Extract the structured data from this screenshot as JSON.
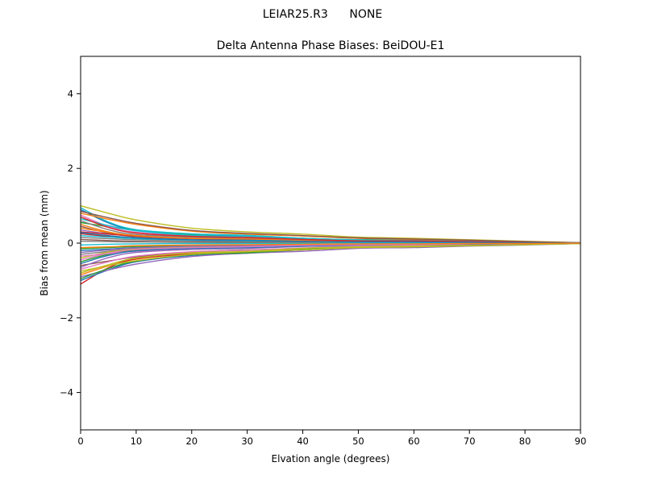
{
  "figure": {
    "background": "#ffffff",
    "suptitle": "LEIAR25.R3      NONE"
  },
  "chart_data": {
    "type": "line",
    "title": "Delta Antenna Phase Biases: BeiDOU-E1",
    "xlabel": "Elvation angle (degrees)",
    "ylabel": "Bias from mean (mm)",
    "xlim": [
      0,
      90
    ],
    "ylim": [
      -5,
      5
    ],
    "xticks": [
      0,
      10,
      20,
      30,
      40,
      50,
      60,
      70,
      80,
      90
    ],
    "yticks": [
      -4,
      -2,
      0,
      2,
      4
    ],
    "grid": false,
    "legend": "none",
    "axis_color": "#000000",
    "x": [
      0,
      5,
      10,
      20,
      30,
      40,
      50,
      60,
      70,
      80,
      90
    ],
    "series": [
      {
        "color": "#1f77b4",
        "values": [
          0.9,
          0.54,
          0.34,
          0.23,
          0.2,
          0.13,
          0.08,
          0.07,
          0.05,
          0.03,
          0.0
        ]
      },
      {
        "color": "#ff7f0e",
        "values": [
          -0.85,
          -0.61,
          -0.43,
          -0.28,
          -0.23,
          -0.15,
          -0.1,
          -0.09,
          -0.06,
          -0.03,
          -0.01
        ]
      },
      {
        "color": "#2ca02c",
        "values": [
          0.55,
          0.44,
          0.34,
          0.22,
          0.17,
          0.13,
          0.09,
          0.12,
          0.06,
          0.03,
          0.01
        ]
      },
      {
        "color": "#d62728",
        "values": [
          -1.1,
          -0.66,
          -0.42,
          -0.29,
          -0.24,
          -0.15,
          -0.1,
          -0.09,
          -0.06,
          -0.03,
          0.0
        ]
      },
      {
        "color": "#9467bd",
        "values": [
          0.35,
          0.25,
          0.18,
          0.12,
          0.09,
          0.06,
          0.04,
          0.04,
          0.02,
          0.01,
          0.0
        ]
      },
      {
        "color": "#8c564b",
        "values": [
          -0.6,
          -0.48,
          -0.37,
          -0.24,
          -0.18,
          -0.14,
          -0.1,
          -0.08,
          -0.05,
          -0.03,
          -0.01
        ]
      },
      {
        "color": "#e377c2",
        "values": [
          0.75,
          0.45,
          0.29,
          0.2,
          0.17,
          0.11,
          0.07,
          0.06,
          0.04,
          0.02,
          0.0
        ]
      },
      {
        "color": "#7f7f7f",
        "values": [
          -0.3,
          -0.22,
          -0.15,
          -0.1,
          -0.08,
          -0.05,
          -0.04,
          -0.03,
          -0.02,
          -0.01,
          0.0
        ]
      },
      {
        "color": "#bcbd22",
        "values": [
          1.0,
          0.8,
          0.62,
          0.4,
          0.3,
          0.24,
          0.16,
          0.13,
          0.09,
          0.05,
          0.01
        ]
      },
      {
        "color": "#17becf",
        "values": [
          0.95,
          0.57,
          0.36,
          0.25,
          0.21,
          0.13,
          0.09,
          0.08,
          0.05,
          0.03,
          0.0
        ]
      },
      {
        "color": "#1f77b4",
        "values": [
          -1.0,
          -0.72,
          -0.5,
          -0.33,
          -0.27,
          -0.18,
          -0.12,
          -0.1,
          -0.07,
          -0.04,
          -0.01
        ]
      },
      {
        "color": "#ff7f0e",
        "values": [
          0.8,
          0.64,
          0.5,
          0.32,
          0.24,
          0.19,
          0.13,
          0.1,
          0.07,
          0.04,
          0.01
        ]
      },
      {
        "color": "#2ca02c",
        "values": [
          -0.5,
          -0.3,
          -0.19,
          -0.13,
          -0.11,
          -0.07,
          -0.05,
          -0.04,
          -0.03,
          -0.02,
          0.0
        ]
      },
      {
        "color": "#d62728",
        "values": [
          0.25,
          0.18,
          0.13,
          0.08,
          0.07,
          0.05,
          0.03,
          0.03,
          0.02,
          0.01,
          0.0
        ]
      },
      {
        "color": "#9467bd",
        "values": [
          -0.9,
          -0.72,
          -0.56,
          -0.36,
          -0.27,
          -0.22,
          -0.14,
          -0.12,
          -0.08,
          -0.05,
          -0.01
        ]
      },
      {
        "color": "#8c564b",
        "values": [
          0.45,
          0.27,
          0.17,
          0.12,
          0.1,
          0.06,
          0.04,
          0.04,
          0.02,
          0.01,
          0.0
        ]
      },
      {
        "color": "#e377c2",
        "values": [
          -0.7,
          -0.5,
          -0.35,
          -0.23,
          -0.19,
          -0.13,
          -0.08,
          -0.07,
          -0.05,
          -0.03,
          -0.01
        ]
      },
      {
        "color": "#7f7f7f",
        "values": [
          0.15,
          0.12,
          0.09,
          0.06,
          0.05,
          0.04,
          0.02,
          0.02,
          0.01,
          0.01,
          0.0
        ]
      },
      {
        "color": "#bcbd22",
        "values": [
          -0.4,
          -0.24,
          -0.15,
          -0.1,
          -0.09,
          -0.06,
          -0.04,
          -0.03,
          -0.02,
          -0.01,
          0.0
        ]
      },
      {
        "color": "#17becf",
        "values": [
          0.65,
          0.47,
          0.33,
          0.21,
          0.18,
          0.12,
          0.08,
          0.07,
          0.05,
          0.03,
          0.01
        ]
      },
      {
        "color": "#1f77b4",
        "values": [
          -0.2,
          -0.16,
          -0.12,
          -0.08,
          -0.06,
          -0.05,
          -0.03,
          -0.03,
          -0.02,
          -0.01,
          0.0
        ]
      },
      {
        "color": "#ff7f0e",
        "values": [
          0.5,
          0.3,
          0.19,
          0.13,
          0.11,
          0.07,
          0.05,
          0.04,
          0.03,
          0.02,
          0.0
        ]
      },
      {
        "color": "#2ca02c",
        "values": [
          -0.95,
          -0.68,
          -0.48,
          -0.31,
          -0.26,
          -0.17,
          -0.11,
          -0.1,
          -0.07,
          -0.04,
          -0.01
        ]
      },
      {
        "color": "#d62728",
        "values": [
          0.3,
          0.24,
          0.19,
          0.12,
          0.09,
          0.07,
          0.05,
          0.04,
          0.03,
          0.02,
          0.0
        ]
      },
      {
        "color": "#9467bd",
        "values": [
          -0.65,
          -0.39,
          -0.25,
          -0.17,
          -0.14,
          -0.09,
          -0.06,
          -0.05,
          -0.03,
          -0.02,
          0.0
        ]
      },
      {
        "color": "#8c564b",
        "values": [
          0.1,
          0.07,
          0.05,
          0.03,
          0.03,
          0.02,
          0.01,
          0.01,
          0.01,
          0.0,
          0.0
        ]
      },
      {
        "color": "#e377c2",
        "values": [
          -0.35,
          -0.28,
          -0.22,
          -0.14,
          -0.11,
          -0.08,
          -0.06,
          -0.05,
          -0.03,
          -0.02,
          0.0
        ]
      },
      {
        "color": "#7f7f7f",
        "values": [
          0.6,
          0.36,
          0.23,
          0.16,
          0.13,
          0.08,
          0.05,
          0.05,
          0.03,
          0.02,
          0.0
        ]
      },
      {
        "color": "#bcbd22",
        "values": [
          -0.8,
          -0.58,
          -0.4,
          -0.26,
          -0.22,
          -0.14,
          -0.1,
          -0.08,
          -0.06,
          -0.03,
          -0.01
        ]
      },
      {
        "color": "#17becf",
        "values": [
          0.2,
          0.16,
          0.12,
          0.08,
          0.06,
          0.05,
          0.03,
          0.03,
          0.02,
          0.01,
          0.0
        ]
      },
      {
        "color": "#1f77b4",
        "values": [
          -0.55,
          -0.33,
          -0.21,
          -0.14,
          -0.12,
          -0.08,
          -0.05,
          -0.04,
          -0.03,
          -0.02,
          0.0
        ]
      },
      {
        "color": "#ff7f0e",
        "values": [
          0.4,
          0.29,
          0.2,
          0.13,
          0.11,
          0.07,
          0.05,
          0.04,
          0.03,
          0.02,
          0.0
        ]
      },
      {
        "color": "#2ca02c",
        "values": [
          -0.15,
          -0.12,
          -0.09,
          -0.06,
          -0.05,
          -0.04,
          -0.02,
          -0.02,
          -0.01,
          -0.01,
          0.0
        ]
      },
      {
        "color": "#d62728",
        "values": [
          0.7,
          0.42,
          0.27,
          0.18,
          0.15,
          0.1,
          0.06,
          0.06,
          0.04,
          0.02,
          0.0
        ]
      },
      {
        "color": "#9467bd",
        "values": [
          -0.25,
          -0.18,
          -0.13,
          -0.08,
          -0.07,
          -0.05,
          -0.03,
          -0.03,
          -0.02,
          -0.01,
          0.0
        ]
      },
      {
        "color": "#8c564b",
        "values": [
          0.85,
          0.68,
          0.53,
          0.34,
          0.26,
          0.2,
          0.14,
          0.11,
          0.08,
          0.04,
          0.01
        ]
      },
      {
        "color": "#e377c2",
        "values": [
          -0.45,
          -0.27,
          -0.17,
          -0.12,
          -0.1,
          -0.06,
          -0.04,
          -0.04,
          -0.02,
          -0.01,
          0.0
        ]
      },
      {
        "color": "#7f7f7f",
        "values": [
          0.05,
          0.04,
          0.03,
          0.02,
          0.01,
          0.01,
          0.01,
          0.01,
          0.0,
          0.0,
          0.0
        ]
      },
      {
        "color": "#bcbd22",
        "values": [
          -0.75,
          -0.6,
          -0.47,
          -0.3,
          -0.23,
          -0.18,
          -0.12,
          -0.1,
          -0.07,
          -0.04,
          -0.01
        ]
      },
      {
        "color": "#17becf",
        "values": [
          -0.05,
          -0.03,
          -0.02,
          -0.01,
          -0.01,
          -0.01,
          0.0,
          0.0,
          0.0,
          0.0,
          0.0
        ]
      },
      {
        "color": "#1f77b4",
        "values": [
          0.28,
          0.2,
          0.14,
          0.09,
          0.08,
          0.05,
          0.03,
          0.03,
          0.02,
          0.01,
          0.0
        ]
      },
      {
        "color": "#ff7f0e",
        "values": [
          -0.12,
          -0.1,
          -0.07,
          -0.05,
          -0.04,
          -0.03,
          -0.02,
          -0.02,
          -0.01,
          -0.01,
          0.0
        ]
      }
    ]
  }
}
